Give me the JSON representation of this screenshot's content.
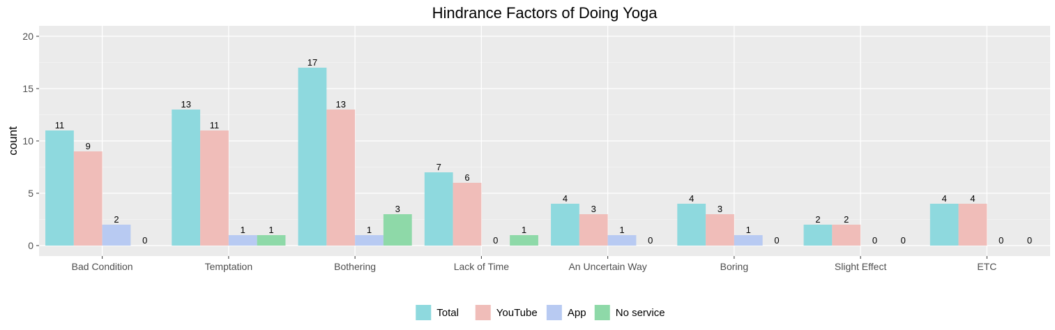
{
  "chart_data": {
    "type": "bar",
    "title": "Hindrance Factors of Doing Yoga",
    "xlabel": "",
    "ylabel": "count",
    "ylim": [
      -1,
      21
    ],
    "yticks": [
      0,
      5,
      10,
      15,
      20
    ],
    "grid": true,
    "legend_position": "bottom",
    "categories": [
      "Bad Condition",
      "Temptation",
      "Bothering",
      "Lack of Time",
      "An Uncertain Way",
      "Boring",
      "Slight Effect",
      "ETC"
    ],
    "series": [
      {
        "name": "Total",
        "color": "#8ED9DE",
        "values": [
          11,
          13,
          17,
          7,
          4,
          4,
          2,
          4
        ]
      },
      {
        "name": "YouTube",
        "color": "#F0BDB9",
        "values": [
          9,
          11,
          13,
          6,
          3,
          3,
          2,
          4
        ]
      },
      {
        "name": "App",
        "color": "#B8CAF2",
        "values": [
          2,
          1,
          1,
          0,
          1,
          1,
          0,
          0
        ]
      },
      {
        "name": "No service",
        "color": "#8ED9A8",
        "values": [
          0,
          1,
          3,
          1,
          0,
          0,
          0,
          0
        ]
      }
    ]
  }
}
